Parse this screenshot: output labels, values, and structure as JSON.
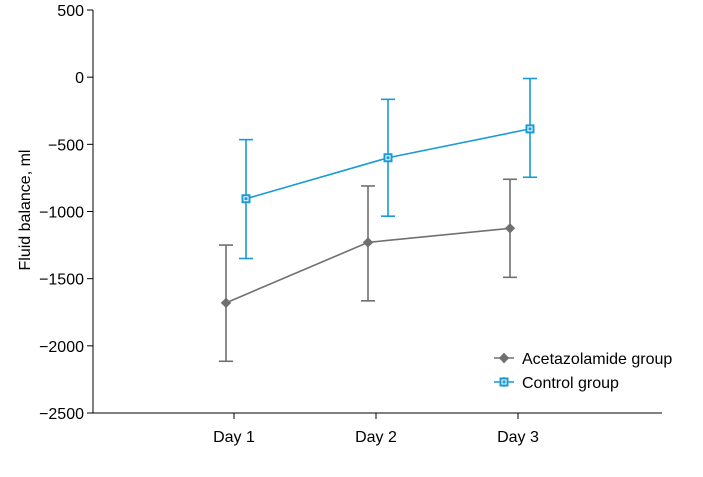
{
  "chart_data": {
    "type": "line",
    "title": "",
    "xlabel": "",
    "ylabel": "Fluid balance, ml",
    "ylim": [
      -2500,
      500
    ],
    "yticks": [
      500,
      0,
      -500,
      -1000,
      -1500,
      -2000,
      -2500
    ],
    "ytick_labels": [
      "500",
      "0",
      "−500",
      "−1000",
      "−1500",
      "−2000",
      "−2500"
    ],
    "categories": [
      "Day 1",
      "Day 2",
      "Day 3"
    ],
    "grid": false,
    "legend_position": "bottom-right",
    "series": [
      {
        "name": "Acetazolamide group",
        "color": "#707070",
        "marker": "diamond",
        "values": [
          -1680,
          -1230,
          -1125
        ],
        "err_low": [
          -2115,
          -1665,
          -1490
        ],
        "err_high": [
          -1250,
          -810,
          -760
        ]
      },
      {
        "name": "Control group",
        "color": "#1a9ad6",
        "marker": "square",
        "values": [
          -905,
          -600,
          -385
        ],
        "err_low": [
          -1350,
          -1035,
          -745
        ],
        "err_high": [
          -465,
          -165,
          -10
        ]
      }
    ]
  }
}
